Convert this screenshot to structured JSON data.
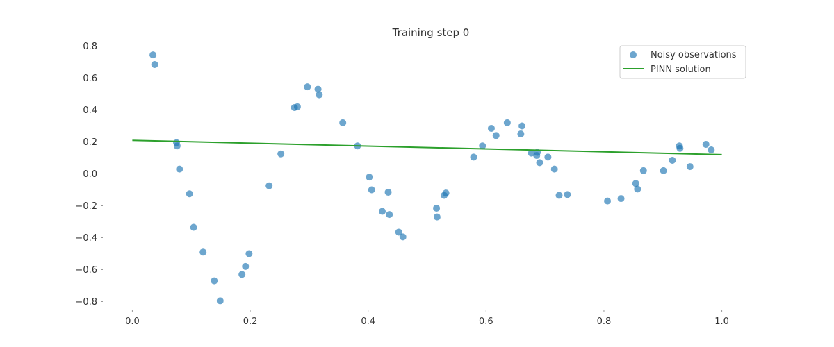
{
  "chart_data": {
    "type": "scatter",
    "title": "Training step 0",
    "xlabel": "",
    "ylabel": "",
    "xlim": [
      -0.05,
      1.05
    ],
    "ylim": [
      -0.85,
      0.85
    ],
    "xticks": [
      0.0,
      0.2,
      0.4,
      0.6,
      0.8,
      1.0
    ],
    "xtick_labels": [
      "0.0",
      "0.2",
      "0.4",
      "0.6",
      "0.8",
      "1.0"
    ],
    "yticks": [
      0.8,
      0.6,
      0.4,
      0.2,
      0.0,
      -0.2,
      -0.4,
      -0.6,
      -0.8
    ],
    "ytick_labels": [
      "0.8",
      "0.6",
      "0.4",
      "0.2",
      "0.0",
      "−0.2",
      "−0.4",
      "−0.6",
      "−0.8"
    ],
    "grid": false,
    "legend_position": "top-right",
    "series": [
      {
        "name": "Noisy observations",
        "kind": "scatter",
        "color": "#1f77b4",
        "x": [
          0.035,
          0.038,
          0.075,
          0.076,
          0.08,
          0.097,
          0.104,
          0.12,
          0.139,
          0.149,
          0.186,
          0.192,
          0.198,
          0.232,
          0.252,
          0.275,
          0.28,
          0.297,
          0.315,
          0.317,
          0.357,
          0.382,
          0.402,
          0.406,
          0.424,
          0.434,
          0.436,
          0.452,
          0.459,
          0.516,
          0.517,
          0.529,
          0.532,
          0.579,
          0.594,
          0.609,
          0.617,
          0.636,
          0.659,
          0.661,
          0.677,
          0.686,
          0.687,
          0.691,
          0.705,
          0.716,
          0.724,
          0.738,
          0.806,
          0.829,
          0.854,
          0.857,
          0.867,
          0.901,
          0.916,
          0.928,
          0.929,
          0.946,
          0.973,
          0.982
        ],
        "y": [
          0.745,
          0.685,
          0.195,
          0.175,
          0.03,
          -0.125,
          -0.335,
          -0.49,
          -0.67,
          -0.795,
          -0.63,
          -0.58,
          -0.5,
          -0.075,
          0.125,
          0.415,
          0.42,
          0.545,
          0.53,
          0.495,
          0.32,
          0.175,
          -0.02,
          -0.1,
          -0.235,
          -0.115,
          -0.255,
          -0.365,
          -0.395,
          -0.215,
          -0.27,
          -0.135,
          -0.12,
          0.105,
          0.175,
          0.285,
          0.24,
          0.32,
          0.25,
          0.3,
          0.13,
          0.115,
          0.135,
          0.07,
          0.105,
          0.03,
          -0.135,
          -0.13,
          -0.17,
          -0.155,
          -0.06,
          -0.095,
          0.02,
          0.02,
          0.085,
          0.175,
          0.16,
          0.045,
          0.185,
          0.15
        ]
      },
      {
        "name": "PINN solution",
        "kind": "line",
        "color": "#2ca02c",
        "x": [
          0.0,
          1.0
        ],
        "y": [
          0.21,
          0.12
        ]
      }
    ]
  }
}
